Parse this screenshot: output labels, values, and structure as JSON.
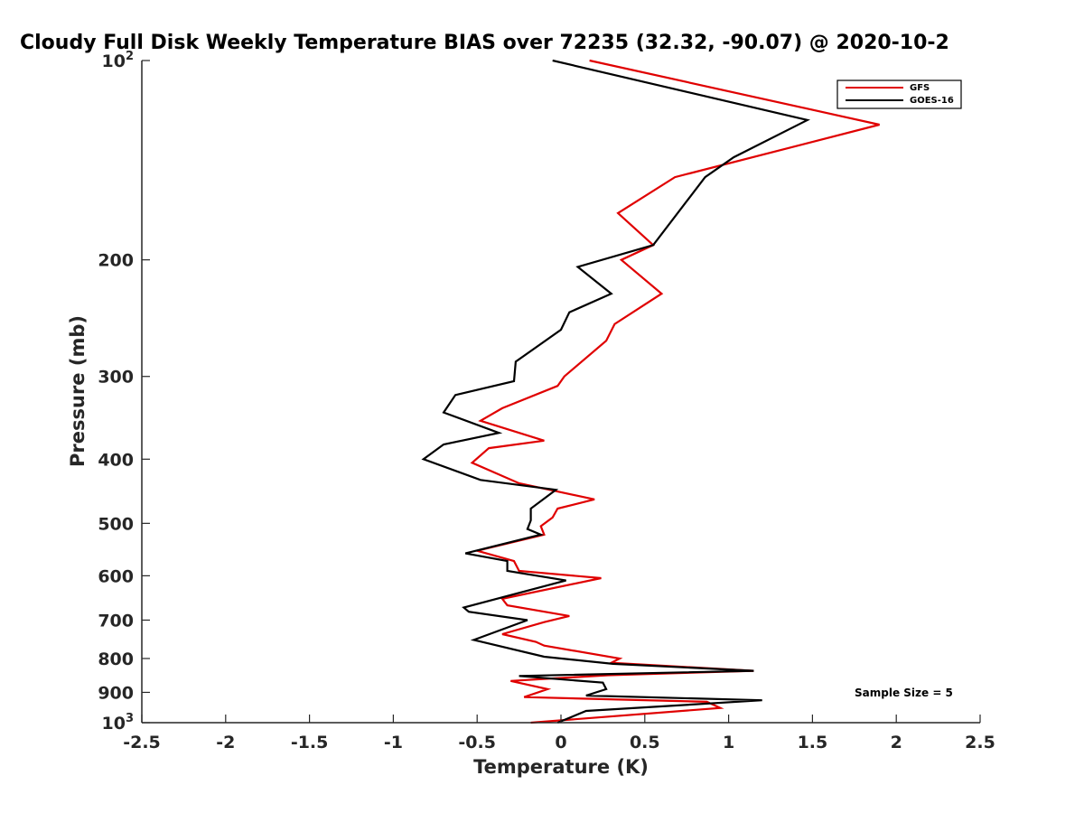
{
  "chart_data": {
    "type": "line",
    "title": "Cloudy Full Disk Weekly Temperature BIAS over 72235 (32.32, -90.07) @ 2020-10-2",
    "xlabel": "Temperature (K)",
    "ylabel": "Pressure (mb)",
    "xlim": [
      -2.5,
      2.5
    ],
    "ylim": [
      100,
      1000
    ],
    "yscale": "log",
    "y_reversed": true,
    "grid": false,
    "legend_location": "top-right",
    "x_tick_labels": [
      "-2.5",
      "-2",
      "-1.5",
      "-1",
      "-0.5",
      "0",
      "0.5",
      "1",
      "1.5",
      "2",
      "2.5"
    ],
    "x_ticks": [
      -2.5,
      -2,
      -1.5,
      -1,
      -0.5,
      0,
      0.5,
      1,
      1.5,
      2,
      2.5
    ],
    "y_ticks": [
      {
        "value": 100,
        "label": "10",
        "sup": "2"
      },
      {
        "value": 200,
        "label": "200"
      },
      {
        "value": 300,
        "label": "300"
      },
      {
        "value": 400,
        "label": "400"
      },
      {
        "value": 500,
        "label": "500"
      },
      {
        "value": 600,
        "label": "600"
      },
      {
        "value": 700,
        "label": "700"
      },
      {
        "value": 800,
        "label": "800"
      },
      {
        "value": 900,
        "label": "900"
      },
      {
        "value": 1000,
        "label": "10",
        "sup": "3"
      }
    ],
    "annotation": "Sample Size = 5",
    "series": [
      {
        "name": "GFS",
        "color": "#e00000",
        "points": [
          [
            0.17,
            100
          ],
          [
            1.9,
            125
          ],
          [
            0.68,
            150
          ],
          [
            0.34,
            170
          ],
          [
            0.55,
            190
          ],
          [
            0.36,
            200
          ],
          [
            0.6,
            225
          ],
          [
            0.32,
            250
          ],
          [
            0.27,
            265
          ],
          [
            0.02,
            300
          ],
          [
            -0.02,
            310
          ],
          [
            -0.35,
            335
          ],
          [
            -0.48,
            350
          ],
          [
            -0.1,
            375
          ],
          [
            -0.43,
            385
          ],
          [
            -0.53,
            405
          ],
          [
            -0.25,
            435
          ],
          [
            0.2,
            460
          ],
          [
            -0.02,
            475
          ],
          [
            -0.05,
            490
          ],
          [
            -0.12,
            505
          ],
          [
            -0.1,
            520
          ],
          [
            -0.5,
            550
          ],
          [
            -0.28,
            570
          ],
          [
            -0.25,
            590
          ],
          [
            0.24,
            605
          ],
          [
            -0.35,
            650
          ],
          [
            -0.32,
            665
          ],
          [
            0.05,
            690
          ],
          [
            -0.1,
            705
          ],
          [
            -0.35,
            735
          ],
          [
            -0.15,
            755
          ],
          [
            -0.1,
            765
          ],
          [
            0.35,
            800
          ],
          [
            0.3,
            812
          ],
          [
            1.15,
            835
          ],
          [
            0.28,
            848
          ],
          [
            -0.3,
            865
          ],
          [
            -0.08,
            890
          ],
          [
            -0.22,
            915
          ],
          [
            0.87,
            930
          ],
          [
            0.95,
            950
          ],
          [
            -0.18,
            1000
          ]
        ]
      },
      {
        "name": "GOES-16",
        "color": "#000000",
        "points": [
          [
            -0.05,
            100
          ],
          [
            1.47,
            123
          ],
          [
            1.03,
            140
          ],
          [
            0.86,
            150
          ],
          [
            0.55,
            190
          ],
          [
            0.1,
            205
          ],
          [
            0.3,
            225
          ],
          [
            0.05,
            240
          ],
          [
            0.0,
            255
          ],
          [
            -0.27,
            285
          ],
          [
            -0.28,
            305
          ],
          [
            -0.63,
            320
          ],
          [
            -0.7,
            340
          ],
          [
            -0.37,
            365
          ],
          [
            -0.7,
            380
          ],
          [
            -0.82,
            400
          ],
          [
            -0.48,
            430
          ],
          [
            -0.03,
            445
          ],
          [
            -0.18,
            475
          ],
          [
            -0.18,
            495
          ],
          [
            -0.2,
            510
          ],
          [
            -0.12,
            520
          ],
          [
            -0.57,
            555
          ],
          [
            -0.32,
            570
          ],
          [
            -0.32,
            590
          ],
          [
            0.03,
            610
          ],
          [
            -0.58,
            670
          ],
          [
            -0.55,
            680
          ],
          [
            -0.2,
            700
          ],
          [
            -0.52,
            750
          ],
          [
            -0.1,
            795
          ],
          [
            0.31,
            815
          ],
          [
            1.15,
            835
          ],
          [
            -0.25,
            850
          ],
          [
            0.25,
            870
          ],
          [
            0.27,
            890
          ],
          [
            0.15,
            910
          ],
          [
            1.2,
            925
          ],
          [
            0.15,
            960
          ],
          [
            -0.02,
            1000
          ]
        ]
      }
    ]
  }
}
